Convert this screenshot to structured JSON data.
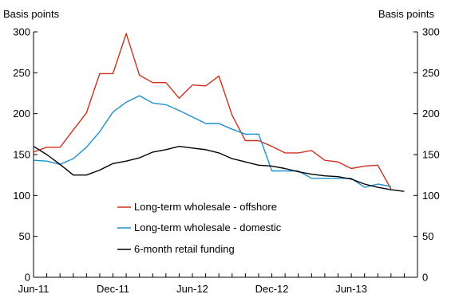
{
  "chart_data": {
    "type": "line",
    "y_axis_left_label": "Basis points",
    "y_axis_right_label": "Basis points",
    "ylim": [
      0,
      300
    ],
    "yticks": [
      0,
      50,
      100,
      150,
      200,
      250,
      300
    ],
    "x_ticks": [
      {
        "label": "Jun-11",
        "x": 0
      },
      {
        "label": "Dec-11",
        "x": 6
      },
      {
        "label": "Jun-12",
        "x": 12
      },
      {
        "label": "Dec-12",
        "x": 18
      },
      {
        "label": "Jun-13",
        "x": 24
      }
    ],
    "xlim": [
      0,
      29
    ],
    "legend_position": "lower-left",
    "series": [
      {
        "name": "Long-term wholesale - offshore",
        "color": "#d0311d",
        "x": [
          0,
          1,
          2,
          3,
          4,
          5,
          6,
          7,
          8,
          9,
          10,
          11,
          12,
          13,
          14,
          15,
          16,
          17,
          18,
          19,
          20,
          21,
          22,
          23,
          24,
          25,
          26,
          27
        ],
        "values": [
          153,
          159,
          159,
          180,
          201,
          249,
          249,
          298,
          247,
          238,
          238,
          219,
          235,
          234,
          246,
          198,
          167,
          167,
          160,
          152,
          152,
          155,
          143,
          141,
          133,
          136,
          137,
          108
        ]
      },
      {
        "name": "Long-term wholesale - domestic",
        "color": "#1e90cf",
        "x": [
          0,
          1,
          2,
          3,
          4,
          5,
          6,
          7,
          8,
          9,
          10,
          11,
          12,
          13,
          14,
          15,
          16,
          17,
          18,
          19,
          20,
          21,
          22,
          23,
          24,
          25,
          26,
          27
        ],
        "values": [
          143,
          142,
          138,
          145,
          159,
          178,
          202,
          214,
          222,
          213,
          211,
          204,
          196,
          188,
          188,
          181,
          175,
          175,
          130,
          130,
          130,
          121,
          121,
          121,
          121,
          110,
          114,
          111
        ]
      },
      {
        "name": "6-month retail funding",
        "color": "#000000",
        "x": [
          0,
          1,
          2,
          3,
          4,
          5,
          6,
          7,
          8,
          9,
          10,
          11,
          12,
          13,
          14,
          15,
          16,
          17,
          18,
          19,
          20,
          21,
          22,
          23,
          24,
          25,
          26,
          27,
          28
        ],
        "values": [
          160,
          150,
          138,
          125,
          125,
          131,
          139,
          142,
          146,
          153,
          156,
          160,
          158,
          156,
          152,
          145,
          141,
          137,
          136,
          133,
          129,
          126,
          124,
          123,
          120,
          114,
          110,
          107,
          105
        ]
      }
    ]
  }
}
